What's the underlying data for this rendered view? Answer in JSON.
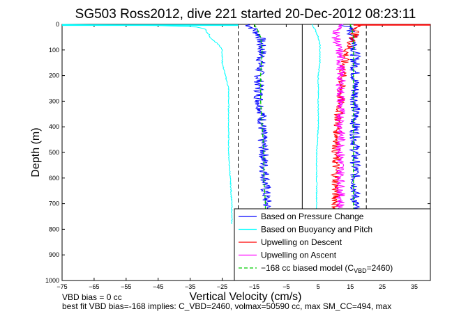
{
  "chart_data": {
    "type": "line",
    "title": "SG503 Ross2012, dive 221 started 20-Dec-2012 08:23:11",
    "xlabel": "Vertical Velocity (cm/s)",
    "ylabel": "Depth (m)",
    "xlim": [
      -75,
      40
    ],
    "ylim": [
      0,
      1000
    ],
    "y_reversed": true,
    "xticks": [
      -75,
      -65,
      -55,
      -45,
      -35,
      -25,
      -15,
      -5,
      5,
      15,
      25,
      35
    ],
    "yticks": [
      0,
      100,
      200,
      300,
      400,
      500,
      600,
      700,
      800,
      900,
      1000
    ],
    "grid": false,
    "legend_position": "lower-right",
    "reference_lines": [
      {
        "x": -20,
        "style": "dashed",
        "color": "#000000"
      },
      {
        "x": 0,
        "style": "solid",
        "color": "#000000"
      },
      {
        "x": 20,
        "style": "dashed",
        "color": "#000000"
      }
    ],
    "series": [
      {
        "name": "Based on Pressure Change",
        "color": "#0000ff",
        "style": "solid",
        "profiles": [
          {
            "depth": [
              0,
              20,
              50,
              80,
              100,
              150,
              200,
              250,
              300,
              350,
              400,
              450,
              500,
              550,
              600,
              650,
              700,
              720
            ],
            "x": [
              -17,
              -15,
              -13,
              -13,
              -12.5,
              -13,
              -13.5,
              -13.5,
              -13.5,
              -12.5,
              -12.5,
              -12.5,
              -12,
              -12,
              -11.5,
              -11.5,
              -11,
              -11
            ]
          },
          {
            "depth": [
              0,
              20,
              50,
              80,
              100,
              150,
              200,
              250,
              300,
              350,
              400,
              450,
              500,
              550,
              600,
              650,
              700,
              720
            ],
            "x": [
              13,
              15,
              16,
              16.5,
              16.5,
              16.5,
              16.5,
              16.5,
              16.5,
              16.5,
              16.5,
              16.5,
              16.5,
              16.5,
              16.5,
              16.5,
              16.5,
              16.5
            ]
          }
        ]
      },
      {
        "name": "Based on Buoyancy and Pitch",
        "color": "#00ffff",
        "style": "solid",
        "profiles": [
          {
            "depth": [
              0,
              5,
              10,
              20,
              30,
              40,
              50,
              60,
              70,
              80,
              100,
              150,
              200,
              250,
              300,
              400,
              500,
              600,
              700,
              780
            ],
            "x": [
              -75,
              -45,
              -33,
              -30,
              -30,
              -29,
              -29,
              -28,
              -27,
              -26,
              -25,
              -25,
              -24,
              -23,
              -23,
              -23,
              -23,
              -22.5,
              -22,
              -22
            ]
          },
          {
            "depth": [
              0,
              20,
              50,
              80,
              100,
              150,
              200,
              300,
              400,
              500,
              600,
              700,
              740
            ],
            "x": [
              3,
              4,
              5,
              5.5,
              5.5,
              5.5,
              5,
              5,
              5,
              4.5,
              4.5,
              4.5,
              4.5
            ]
          }
        ]
      },
      {
        "name": "Upwelling on Descent",
        "color": "#ff0000",
        "style": "solid",
        "profiles": [
          {
            "depth": [
              0,
              20,
              50,
              80,
              100,
              150,
              200,
              250,
              300,
              350,
              400,
              450,
              500,
              550,
              600,
              650,
              700,
              720
            ],
            "x": [
              18,
              17,
              16,
              15,
              14,
              13,
              12.5,
              12,
              12,
              11.5,
              11,
              11,
              10.5,
              10.5,
              10.5,
              10.5,
              10.5,
              10.5
            ]
          }
        ]
      },
      {
        "name": "Upwelling on Ascent",
        "color": "#ff00ff",
        "style": "solid",
        "profiles": [
          {
            "depth": [
              0,
              20,
              50,
              80,
              100,
              150,
              200,
              250,
              300,
              350,
              400,
              450,
              500,
              550,
              600,
              650,
              700,
              720
            ],
            "x": [
              12,
              11,
              10.5,
              11,
              11.5,
              12,
              12,
              12,
              12,
              12,
              12,
              12,
              12,
              12,
              12,
              12,
              12,
              12
            ]
          }
        ]
      },
      {
        "name": "-168 cc biased model (C_VBD=2460)",
        "color": "#00cc00",
        "style": "dashed",
        "profiles": [
          {
            "depth": [
              0,
              20,
              50,
              100,
              200,
              300,
              400,
              500,
              600,
              700,
              720
            ],
            "x": [
              -15,
              -14,
              -13,
              -12.5,
              -13,
              -13,
              -12.5,
              -12,
              -12,
              -11.5,
              -11.5
            ]
          },
          {
            "depth": [
              0,
              20,
              50,
              100,
              200,
              300,
              400,
              500,
              600,
              700,
              720
            ],
            "x": [
              15,
              15.5,
              16,
              16,
              16,
              16,
              16,
              16,
              16,
              16,
              16
            ]
          }
        ]
      }
    ],
    "legend_last_label": {
      "prefix": "−168 cc biased model (C",
      "sub": "VBD",
      "suffix": "=2460)"
    }
  },
  "notes": {
    "line1": "VBD bias = 0 cc",
    "line2": "best fit VBD bias=-168 implies: C_VBD=2460, volmax=50590 cc, max SM_CC=494, max"
  }
}
